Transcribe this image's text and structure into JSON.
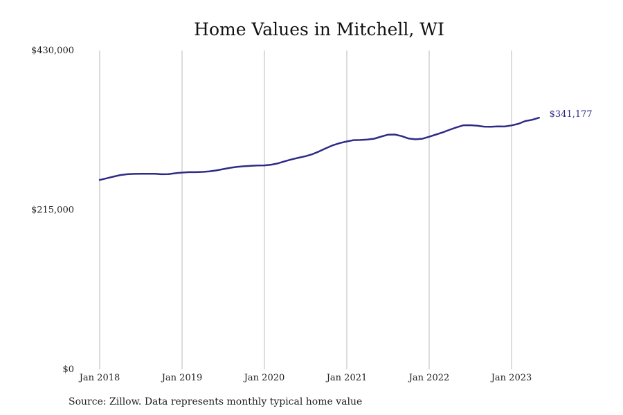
{
  "chart_data": {
    "type": "line",
    "title": "Home Values in Mitchell, WI",
    "xlabel": "",
    "ylabel": "",
    "x_ticks": [
      "Jan 2018",
      "Jan 2019",
      "Jan 2020",
      "Jan 2021",
      "Jan 2022",
      "Jan 2023"
    ],
    "y_ticks": [
      "$430,000",
      "$215,000",
      "$0"
    ],
    "y_tick_values": [
      430000,
      215000,
      0
    ],
    "ylim": [
      0,
      430000
    ],
    "xlim": [
      "2018-01",
      "2023-12"
    ],
    "grid": "vertical lines at each January",
    "line_color": "#2e2a87",
    "end_label": "$341,177",
    "series": [
      {
        "x": [
          "2018-01",
          "2018-02",
          "2018-03",
          "2018-04",
          "2018-05",
          "2018-06",
          "2018-07",
          "2018-08",
          "2018-09",
          "2018-10",
          "2018-11",
          "2018-12",
          "2019-01",
          "2019-02",
          "2019-03",
          "2019-04",
          "2019-05",
          "2019-06",
          "2019-07",
          "2019-08",
          "2019-09",
          "2019-10",
          "2019-11",
          "2019-12",
          "2020-01",
          "2020-02",
          "2020-03",
          "2020-04",
          "2020-05",
          "2020-06",
          "2020-07",
          "2020-08",
          "2020-09",
          "2020-10",
          "2020-11",
          "2020-12",
          "2021-01",
          "2021-02",
          "2021-03",
          "2021-04",
          "2021-05",
          "2021-06",
          "2021-07",
          "2021-08",
          "2021-09",
          "2021-10",
          "2021-11",
          "2021-12",
          "2022-01",
          "2022-02",
          "2022-03",
          "2022-04",
          "2022-05",
          "2022-06",
          "2022-07",
          "2022-08",
          "2022-09",
          "2022-10",
          "2022-11",
          "2022-12",
          "2023-01",
          "2023-02",
          "2023-03",
          "2023-04",
          "2023-05"
        ],
        "values": [
          255400,
          257600,
          259900,
          262000,
          263100,
          263600,
          263800,
          263800,
          263800,
          263100,
          263300,
          264400,
          265400,
          265900,
          265900,
          266300,
          267000,
          268300,
          270000,
          271800,
          273000,
          273900,
          274500,
          275000,
          275100,
          276000,
          277900,
          280700,
          283300,
          285400,
          287500,
          290200,
          294000,
          298400,
          302300,
          305200,
          307300,
          309100,
          309300,
          309900,
          311100,
          313900,
          316500,
          316700,
          314500,
          311300,
          310200,
          311000,
          313700,
          316700,
          319700,
          323200,
          326400,
          329200,
          329300,
          328500,
          327300,
          327100,
          327600,
          327500,
          329000,
          331100,
          334900,
          336500,
          339300
        ]
      }
    ]
  },
  "source_note": "Source: Zillow. Data represents monthly typical home value"
}
